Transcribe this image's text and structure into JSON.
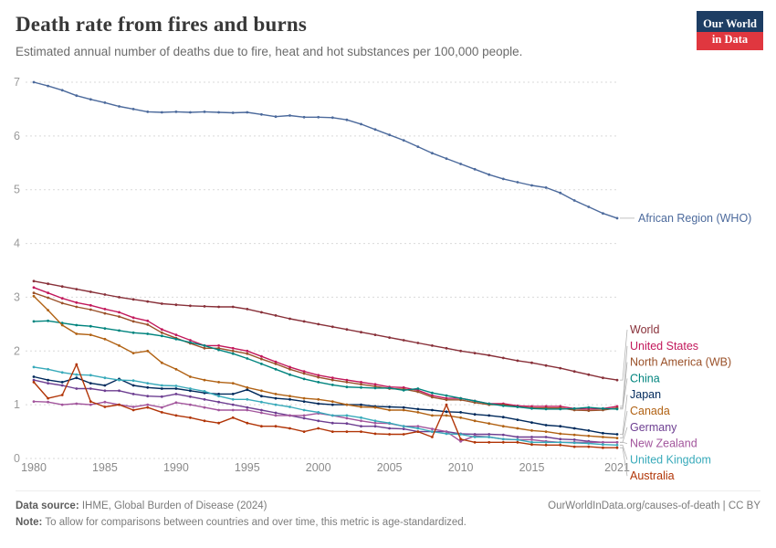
{
  "header": {
    "title": "Death rate from fires and burns",
    "subtitle": "Estimated annual number of deaths due to fire, heat and hot substances per 100,000 people.",
    "logo_line1": "Our World",
    "logo_line2": "in Data"
  },
  "footer": {
    "source_label": "Data source:",
    "source_text": " IHME, Global Burden of Disease (2024)",
    "link_text": "OurWorldInData.org/causes-of-death | CC BY",
    "note_label": "Note:",
    "note_text": " To allow for comparisons between countries and over time, this metric is age-standardized."
  },
  "chart_data": {
    "type": "line",
    "title": "Death rate from fires and burns",
    "x": [
      1980,
      1981,
      1982,
      1983,
      1984,
      1985,
      1986,
      1987,
      1988,
      1989,
      1990,
      1991,
      1992,
      1993,
      1994,
      1995,
      1996,
      1997,
      1998,
      1999,
      2000,
      2001,
      2002,
      2003,
      2004,
      2005,
      2006,
      2007,
      2008,
      2009,
      2010,
      2011,
      2012,
      2013,
      2014,
      2015,
      2016,
      2017,
      2018,
      2019,
      2020,
      2021
    ],
    "x_ticks": [
      1980,
      1985,
      1990,
      1995,
      2000,
      2005,
      2010,
      2015,
      2021
    ],
    "ylim": [
      0,
      7
    ],
    "y_ticks": [
      0,
      1,
      2,
      3,
      4,
      5,
      6,
      7
    ],
    "grid": "dashed",
    "legend_position": "right",
    "series": [
      {
        "name": "African Region (WHO)",
        "color": "#4C6A9C",
        "label_row": null,
        "values": [
          7.0,
          6.93,
          6.85,
          6.75,
          6.68,
          6.62,
          6.55,
          6.5,
          6.45,
          6.44,
          6.45,
          6.44,
          6.45,
          6.44,
          6.43,
          6.44,
          6.4,
          6.36,
          6.38,
          6.35,
          6.35,
          6.34,
          6.3,
          6.22,
          6.12,
          6.02,
          5.92,
          5.8,
          5.68,
          5.58,
          5.48,
          5.38,
          5.28,
          5.2,
          5.14,
          5.08,
          5.04,
          4.94,
          4.8,
          4.68,
          4.56,
          4.47
        ]
      },
      {
        "name": "World",
        "color": "#883039",
        "label_row": 0,
        "values": [
          3.3,
          3.25,
          3.2,
          3.15,
          3.1,
          3.05,
          3.0,
          2.96,
          2.92,
          2.88,
          2.86,
          2.84,
          2.83,
          2.82,
          2.82,
          2.78,
          2.72,
          2.66,
          2.6,
          2.55,
          2.5,
          2.45,
          2.4,
          2.35,
          2.3,
          2.25,
          2.2,
          2.15,
          2.1,
          2.05,
          2.0,
          1.96,
          1.92,
          1.87,
          1.82,
          1.78,
          1.73,
          1.68,
          1.62,
          1.56,
          1.5,
          1.46
        ]
      },
      {
        "name": "United States",
        "color": "#C2185B",
        "label_row": 1,
        "values": [
          3.18,
          3.08,
          2.98,
          2.9,
          2.85,
          2.78,
          2.72,
          2.62,
          2.56,
          2.4,
          2.3,
          2.2,
          2.1,
          2.1,
          2.05,
          2.0,
          1.9,
          1.8,
          1.7,
          1.62,
          1.55,
          1.5,
          1.46,
          1.42,
          1.38,
          1.33,
          1.32,
          1.27,
          1.17,
          1.12,
          1.12,
          1.07,
          1.02,
          1.02,
          0.98,
          0.97,
          0.97,
          0.97,
          0.93,
          0.92,
          0.93,
          0.97
        ]
      },
      {
        "name": "North America (WB)",
        "color": "#9A5129",
        "label_row": 2,
        "values": [
          3.08,
          2.99,
          2.89,
          2.82,
          2.77,
          2.7,
          2.64,
          2.55,
          2.49,
          2.34,
          2.24,
          2.14,
          2.05,
          2.05,
          2.0,
          1.95,
          1.85,
          1.76,
          1.66,
          1.58,
          1.51,
          1.46,
          1.42,
          1.38,
          1.34,
          1.3,
          1.29,
          1.24,
          1.14,
          1.09,
          1.09,
          1.04,
          1.0,
          1.0,
          0.96,
          0.94,
          0.94,
          0.94,
          0.9,
          0.89,
          0.9,
          0.94
        ]
      },
      {
        "name": "China",
        "color": "#00847E",
        "label_row": 3,
        "values": [
          2.55,
          2.56,
          2.52,
          2.48,
          2.46,
          2.42,
          2.38,
          2.34,
          2.32,
          2.28,
          2.22,
          2.16,
          2.1,
          2.02,
          1.95,
          1.86,
          1.76,
          1.66,
          1.56,
          1.48,
          1.42,
          1.37,
          1.33,
          1.32,
          1.31,
          1.31,
          1.27,
          1.3,
          1.22,
          1.17,
          1.12,
          1.07,
          1.02,
          0.98,
          0.96,
          0.93,
          0.92,
          0.92,
          0.93,
          0.95,
          0.93,
          0.92
        ]
      },
      {
        "name": "Japan",
        "color": "#00295B",
        "label_row": 4,
        "values": [
          1.52,
          1.46,
          1.42,
          1.5,
          1.4,
          1.36,
          1.48,
          1.36,
          1.32,
          1.3,
          1.3,
          1.26,
          1.22,
          1.2,
          1.2,
          1.28,
          1.16,
          1.12,
          1.1,
          1.06,
          1.02,
          1.0,
          1.0,
          1.0,
          0.97,
          0.96,
          0.95,
          0.92,
          0.9,
          0.87,
          0.86,
          0.82,
          0.8,
          0.77,
          0.72,
          0.67,
          0.62,
          0.6,
          0.56,
          0.52,
          0.47,
          0.45
        ]
      },
      {
        "name": "Canada",
        "color": "#B16214",
        "label_row": 5,
        "values": [
          3.02,
          2.76,
          2.48,
          2.32,
          2.3,
          2.22,
          2.1,
          1.96,
          2.0,
          1.78,
          1.66,
          1.52,
          1.46,
          1.42,
          1.4,
          1.32,
          1.26,
          1.2,
          1.16,
          1.12,
          1.1,
          1.06,
          1.0,
          0.96,
          0.95,
          0.9,
          0.9,
          0.86,
          0.8,
          0.8,
          0.76,
          0.7,
          0.65,
          0.6,
          0.56,
          0.52,
          0.5,
          0.46,
          0.44,
          0.42,
          0.4,
          0.38
        ]
      },
      {
        "name": "Germany",
        "color": "#6D3E91",
        "label_row": 6,
        "values": [
          1.46,
          1.4,
          1.36,
          1.3,
          1.3,
          1.26,
          1.26,
          1.2,
          1.16,
          1.15,
          1.2,
          1.15,
          1.1,
          1.05,
          1.0,
          0.95,
          0.9,
          0.85,
          0.8,
          0.75,
          0.7,
          0.66,
          0.65,
          0.6,
          0.6,
          0.56,
          0.55,
          0.5,
          0.5,
          0.5,
          0.46,
          0.45,
          0.45,
          0.44,
          0.4,
          0.4,
          0.4,
          0.36,
          0.35,
          0.32,
          0.3,
          0.3
        ]
      },
      {
        "name": "New Zealand",
        "color": "#A2559C",
        "label_row": 7,
        "values": [
          1.06,
          1.05,
          1.0,
          1.02,
          1.0,
          1.05,
          1.0,
          0.96,
          1.0,
          0.95,
          1.04,
          1.0,
          0.95,
          0.9,
          0.9,
          0.9,
          0.85,
          0.8,
          0.8,
          0.8,
          0.84,
          0.8,
          0.75,
          0.7,
          0.66,
          0.65,
          0.6,
          0.6,
          0.55,
          0.5,
          0.32,
          0.42,
          0.4,
          0.36,
          0.35,
          0.35,
          0.32,
          0.3,
          0.3,
          0.3,
          0.3,
          0.3
        ]
      },
      {
        "name": "United Kingdom",
        "color": "#38AABA",
        "label_row": 8,
        "values": [
          1.7,
          1.66,
          1.6,
          1.56,
          1.55,
          1.5,
          1.46,
          1.45,
          1.4,
          1.36,
          1.35,
          1.3,
          1.25,
          1.16,
          1.1,
          1.1,
          1.05,
          1.0,
          0.96,
          0.9,
          0.86,
          0.8,
          0.8,
          0.76,
          0.7,
          0.66,
          0.6,
          0.56,
          0.5,
          0.46,
          0.45,
          0.4,
          0.4,
          0.36,
          0.35,
          0.3,
          0.3,
          0.3,
          0.29,
          0.28,
          0.26,
          0.25
        ]
      },
      {
        "name": "Australia",
        "color": "#B13507",
        "label_row": 9,
        "values": [
          1.42,
          1.12,
          1.18,
          1.75,
          1.06,
          0.96,
          1.0,
          0.9,
          0.95,
          0.86,
          0.8,
          0.76,
          0.7,
          0.66,
          0.76,
          0.66,
          0.6,
          0.6,
          0.56,
          0.5,
          0.56,
          0.5,
          0.5,
          0.5,
          0.46,
          0.45,
          0.45,
          0.5,
          0.4,
          1.0,
          0.36,
          0.3,
          0.3,
          0.3,
          0.3,
          0.26,
          0.25,
          0.25,
          0.22,
          0.22,
          0.2,
          0.2
        ]
      }
    ]
  }
}
